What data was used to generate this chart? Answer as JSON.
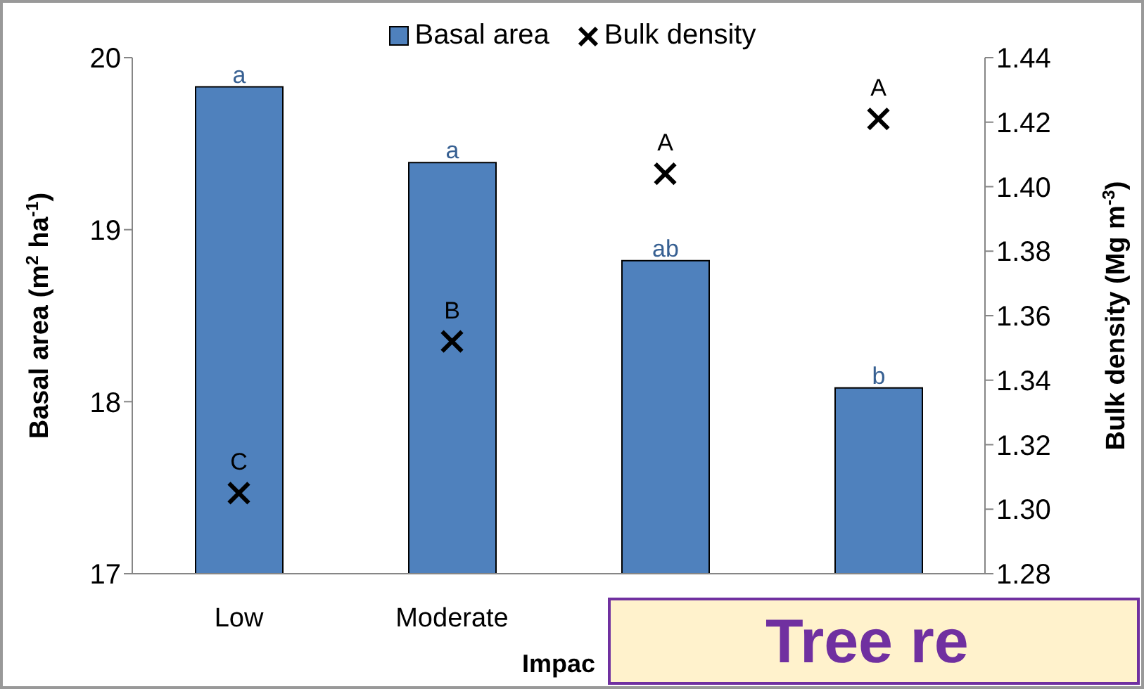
{
  "chart_data": {
    "type": "bar",
    "xlabel": "Impac",
    "ylabel": "Basal area (m$^{2}$ ha$^{-1}$)",
    "y2label": "Bulk density (Mg m$^{-3}$)",
    "categories": [
      "Low",
      "Moderate",
      null,
      null
    ],
    "series": [
      {
        "name": "Basal area",
        "color": "#4f81bd",
        "values": [
          19.83,
          19.39,
          18.82,
          18.08
        ],
        "value_labels": [
          "a",
          "a",
          "ab",
          "b"
        ]
      },
      {
        "name": "Bulk density",
        "type": "scatter",
        "axis": "y2",
        "marker": "cross",
        "color": "#000000",
        "values": [
          1.305,
          1.352,
          1.404,
          1.421
        ],
        "value_labels": [
          "C",
          "B",
          "A",
          "A"
        ]
      }
    ],
    "ylim": [
      17,
      20
    ],
    "yticks": [
      17,
      18,
      19,
      20
    ],
    "y2lim": [
      1.28,
      1.44
    ],
    "y2ticks": [
      1.28,
      {
        "value": 1.3,
        "label": "1.30"
      },
      1.32,
      1.34,
      1.36,
      1.38,
      {
        "value": 1.4,
        "label": "1.40"
      },
      1.42,
      1.44
    ],
    "legend": "top",
    "grid": false,
    "annotations": [
      "Tree re"
    ]
  }
}
